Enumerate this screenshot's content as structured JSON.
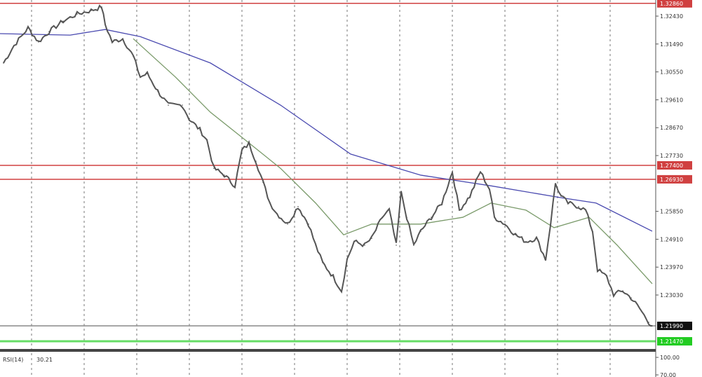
{
  "chart_data": {
    "type": "line",
    "title": "",
    "xlabel": "",
    "ylabel": "",
    "ylim": [
      1.216,
      1.329
    ],
    "grid": {
      "vertical": true,
      "horizontal": false,
      "style": "dashed"
    },
    "price_ticks": [
      "1.32430",
      "1.31490",
      "1.30550",
      "1.29610",
      "1.28670",
      "1.27730",
      "1.25850",
      "1.24910",
      "1.23970",
      "1.23030"
    ],
    "price_tick_values": [
      1.3243,
      1.3149,
      1.3055,
      1.2961,
      1.2867,
      1.2773,
      1.2585,
      1.2491,
      1.2397,
      1.2303
    ],
    "price": {
      "color": "#555555",
      "points": [
        [
          0.5,
          1.3085
        ],
        [
          2,
          1.3144
        ],
        [
          4,
          1.3203
        ],
        [
          5.5,
          1.3156
        ],
        [
          7,
          1.3191
        ],
        [
          9,
          1.3226
        ],
        [
          11,
          1.325
        ],
        [
          13,
          1.3262
        ],
        [
          14.5,
          1.3274
        ],
        [
          15,
          1.3215
        ],
        [
          16,
          1.3156
        ],
        [
          17.5,
          1.3167
        ],
        [
          19,
          1.3108
        ],
        [
          20,
          1.3038
        ],
        [
          21,
          1.3049
        ],
        [
          22.5,
          1.299
        ],
        [
          24,
          1.2943
        ],
        [
          26,
          1.2943
        ],
        [
          27,
          1.2896
        ],
        [
          28.5,
          1.286
        ],
        [
          29.5,
          1.2825
        ],
        [
          30.5,
          1.273
        ],
        [
          32,
          1.2707
        ],
        [
          33.5,
          1.2671
        ],
        [
          34.5,
          1.279
        ],
        [
          35.5,
          1.2813
        ],
        [
          36.5,
          1.2754
        ],
        [
          37.5,
          1.2683
        ],
        [
          38.5,
          1.2613
        ],
        [
          39.5,
          1.2577
        ],
        [
          41,
          1.2542
        ],
        [
          42.5,
          1.2601
        ],
        [
          44,
          1.2542
        ],
        [
          45,
          1.2471
        ],
        [
          46,
          1.2412
        ],
        [
          47.5,
          1.2365
        ],
        [
          48.7,
          1.2317
        ],
        [
          49.5,
          1.2423
        ],
        [
          50.5,
          1.2483
        ],
        [
          52,
          1.2471
        ],
        [
          53,
          1.2494
        ],
        [
          54.5,
          1.2565
        ],
        [
          55.5,
          1.2589
        ],
        [
          56.5,
          1.2471
        ],
        [
          57.2,
          1.2648
        ],
        [
          58,
          1.2565
        ],
        [
          59,
          1.2471
        ],
        [
          60,
          1.2518
        ],
        [
          61.5,
          1.2565
        ],
        [
          63,
          1.2613
        ],
        [
          64.5,
          1.2719
        ],
        [
          65.5,
          1.2589
        ],
        [
          67,
          1.2636
        ],
        [
          68.5,
          1.2719
        ],
        [
          69.8,
          1.266
        ],
        [
          70.5,
          1.2565
        ],
        [
          72,
          1.2542
        ],
        [
          73.5,
          1.2506
        ],
        [
          75,
          1.2483
        ],
        [
          76.5,
          1.2494
        ],
        [
          77.8,
          1.2423
        ],
        [
          78.5,
          1.2542
        ],
        [
          79.2,
          1.2679
        ],
        [
          80,
          1.2636
        ],
        [
          81,
          1.2613
        ],
        [
          82.5,
          1.2601
        ],
        [
          83.5,
          1.2589
        ],
        [
          84.5,
          1.2518
        ],
        [
          85.2,
          1.2388
        ],
        [
          86.5,
          1.2365
        ],
        [
          87.5,
          1.2305
        ],
        [
          88.8,
          1.2317
        ],
        [
          90,
          1.2293
        ],
        [
          91.2,
          1.2258
        ],
        [
          92.5,
          1.2211
        ],
        [
          93,
          1.2199
        ]
      ]
    },
    "moving_averages": [
      {
        "color": "#4a4ab0",
        "points": [
          [
            0,
            1.3184
          ],
          [
            10,
            1.3179
          ],
          [
            15,
            1.3198
          ],
          [
            20,
            1.3174
          ],
          [
            30,
            1.3085
          ],
          [
            40,
            1.2943
          ],
          [
            50,
            1.2778
          ],
          [
            60,
            1.2707
          ],
          [
            70,
            1.2671
          ],
          [
            80,
            1.2631
          ],
          [
            85,
            1.2613
          ],
          [
            93,
            1.2518
          ]
        ]
      },
      {
        "color": "#7a9a6a",
        "points": [
          [
            19,
            1.3167
          ],
          [
            25,
            1.3038
          ],
          [
            30,
            1.2919
          ],
          [
            35,
            1.2825
          ],
          [
            40,
            1.273
          ],
          [
            45,
            1.2613
          ],
          [
            49,
            1.2506
          ],
          [
            53,
            1.2542
          ],
          [
            60,
            1.2542
          ],
          [
            66,
            1.2565
          ],
          [
            70,
            1.2613
          ],
          [
            75,
            1.2589
          ],
          [
            79,
            1.253
          ],
          [
            84,
            1.2565
          ],
          [
            88,
            1.2471
          ],
          [
            93,
            1.2341
          ]
        ]
      }
    ],
    "horizontal_levels": [
      {
        "price": 1.3286,
        "label": "1.32860",
        "color": "#d04040"
      },
      {
        "price": 1.274,
        "label": "1.27400",
        "color": "#d04040"
      },
      {
        "price": 1.2693,
        "label": "1.26930",
        "color": "#d04040"
      },
      {
        "price": 1.2199,
        "label": "1.21990",
        "color": "#888888",
        "tag_color": "#111111"
      },
      {
        "price": 1.2147,
        "label": "1.21470",
        "color": "#66dd66",
        "tag_color": "#22cc22"
      }
    ],
    "indicator": {
      "label": "RSI(14)",
      "value": "30.21",
      "ticks": [
        "100.00",
        "70.00"
      ]
    }
  }
}
